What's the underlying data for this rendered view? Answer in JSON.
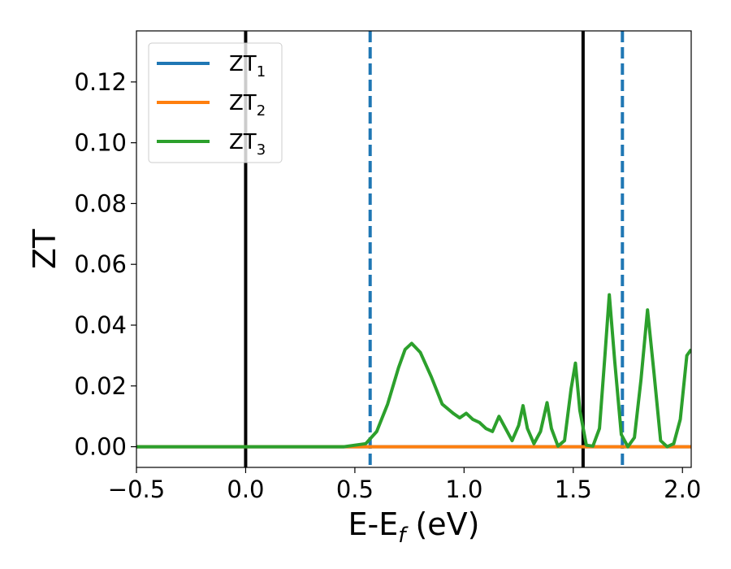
{
  "chart_data": {
    "type": "line",
    "title": "",
    "xlabel": "E-E_f (eV)",
    "xlabel_parts": {
      "main": "E-E",
      "sub": "f",
      "tail": " (eV)"
    },
    "ylabel": "ZT",
    "xlim": [
      -0.5,
      2.04
    ],
    "ylim": [
      -0.0068,
      0.1368
    ],
    "x_ticks": [
      -0.5,
      0.0,
      0.5,
      1.0,
      1.5,
      2.0
    ],
    "x_tick_labels": [
      "−0.5",
      "0.0",
      "0.5",
      "1.0",
      "1.5",
      "2.0"
    ],
    "y_ticks": [
      0.0,
      0.02,
      0.04,
      0.06,
      0.08,
      0.1,
      0.12
    ],
    "y_tick_labels": [
      "0.00",
      "0.02",
      "0.04",
      "0.06",
      "0.08",
      "0.10",
      "0.12"
    ],
    "grid": false,
    "legend_position": "top-left",
    "vlines": [
      {
        "x": 0.0,
        "color": "#000000",
        "style": "solid"
      },
      {
        "x": 1.545,
        "color": "#000000",
        "style": "solid"
      },
      {
        "x": 0.57,
        "color": "#1f77b4",
        "style": "dashed"
      },
      {
        "x": 1.725,
        "color": "#1f77b4",
        "style": "dashed"
      }
    ],
    "series": [
      {
        "name": "ZT1",
        "label_main": "ZT",
        "label_sub": "1",
        "color": "#1f77b4",
        "x": [
          -0.5,
          2.04
        ],
        "y": [
          0.0,
          0.0
        ]
      },
      {
        "name": "ZT2",
        "label_main": "ZT",
        "label_sub": "2",
        "color": "#ff7f0e",
        "x": [
          -0.5,
          2.04
        ],
        "y": [
          0.0,
          0.0
        ]
      },
      {
        "name": "ZT3",
        "label_main": "ZT",
        "label_sub": "3",
        "color": "#2ca02c",
        "x": [
          -0.5,
          0.45,
          0.55,
          0.6,
          0.65,
          0.7,
          0.73,
          0.76,
          0.8,
          0.85,
          0.9,
          0.95,
          0.98,
          1.01,
          1.04,
          1.07,
          1.1,
          1.13,
          1.16,
          1.19,
          1.22,
          1.25,
          1.27,
          1.29,
          1.32,
          1.35,
          1.38,
          1.4,
          1.43,
          1.46,
          1.49,
          1.51,
          1.53,
          1.56,
          1.59,
          1.62,
          1.645,
          1.665,
          1.69,
          1.72,
          1.75,
          1.78,
          1.81,
          1.84,
          1.87,
          1.9,
          1.93,
          1.96,
          1.99,
          2.02,
          2.04
        ],
        "y": [
          0.0,
          0.0,
          0.001,
          0.005,
          0.014,
          0.026,
          0.032,
          0.034,
          0.031,
          0.023,
          0.014,
          0.011,
          0.0095,
          0.011,
          0.009,
          0.008,
          0.006,
          0.005,
          0.01,
          0.006,
          0.002,
          0.007,
          0.0135,
          0.006,
          0.001,
          0.005,
          0.0145,
          0.006,
          0.0002,
          0.002,
          0.019,
          0.0275,
          0.012,
          0.0005,
          0.0002,
          0.006,
          0.03,
          0.05,
          0.028,
          0.004,
          0.0,
          0.003,
          0.022,
          0.045,
          0.024,
          0.002,
          0.0,
          0.001,
          0.009,
          0.03,
          0.032
        ]
      }
    ]
  }
}
